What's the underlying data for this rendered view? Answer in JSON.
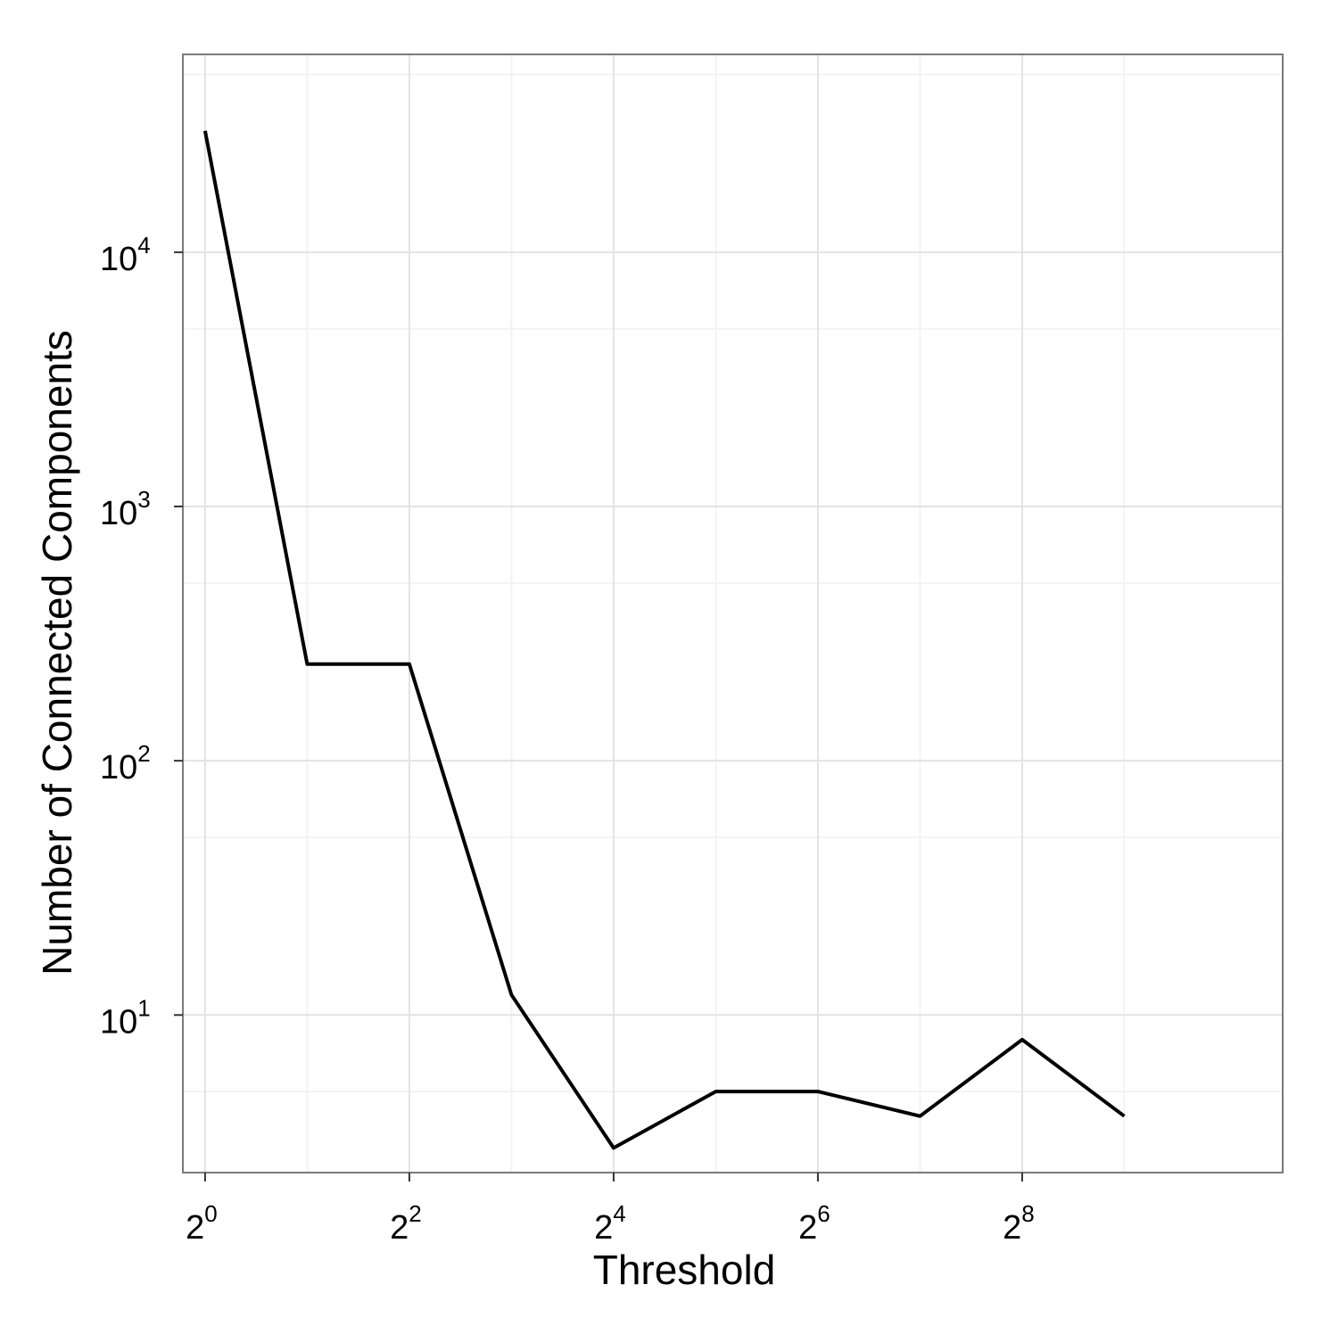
{
  "chart_data": {
    "type": "line",
    "title": "",
    "xlabel": "Threshold",
    "ylabel": "Number of Connected Components",
    "x_scale": "log2",
    "y_scale": "log10",
    "xlim": [
      0.86,
      1500
    ],
    "ylim": [
      2.4,
      60000
    ],
    "x_ticks": [
      {
        "value": 1,
        "base": "2",
        "exp": "0"
      },
      {
        "value": 4,
        "base": "2",
        "exp": "2"
      },
      {
        "value": 16,
        "base": "2",
        "exp": "4"
      },
      {
        "value": 64,
        "base": "2",
        "exp": "6"
      },
      {
        "value": 256,
        "base": "2",
        "exp": "8"
      }
    ],
    "y_ticks": [
      {
        "value": 10,
        "base": "10",
        "exp": "1"
      },
      {
        "value": 100,
        "base": "10",
        "exp": "2"
      },
      {
        "value": 1000,
        "base": "10",
        "exp": "3"
      },
      {
        "value": 10000,
        "base": "10",
        "exp": "4"
      }
    ],
    "grid": true,
    "legend": "none",
    "series": [
      {
        "color": "#000000",
        "x": [
          1,
          2,
          4,
          8,
          16,
          32,
          64,
          128,
          256,
          512
        ],
        "y": [
          30000,
          240,
          240,
          12,
          3,
          5,
          5,
          4,
          8,
          4
        ]
      }
    ]
  }
}
